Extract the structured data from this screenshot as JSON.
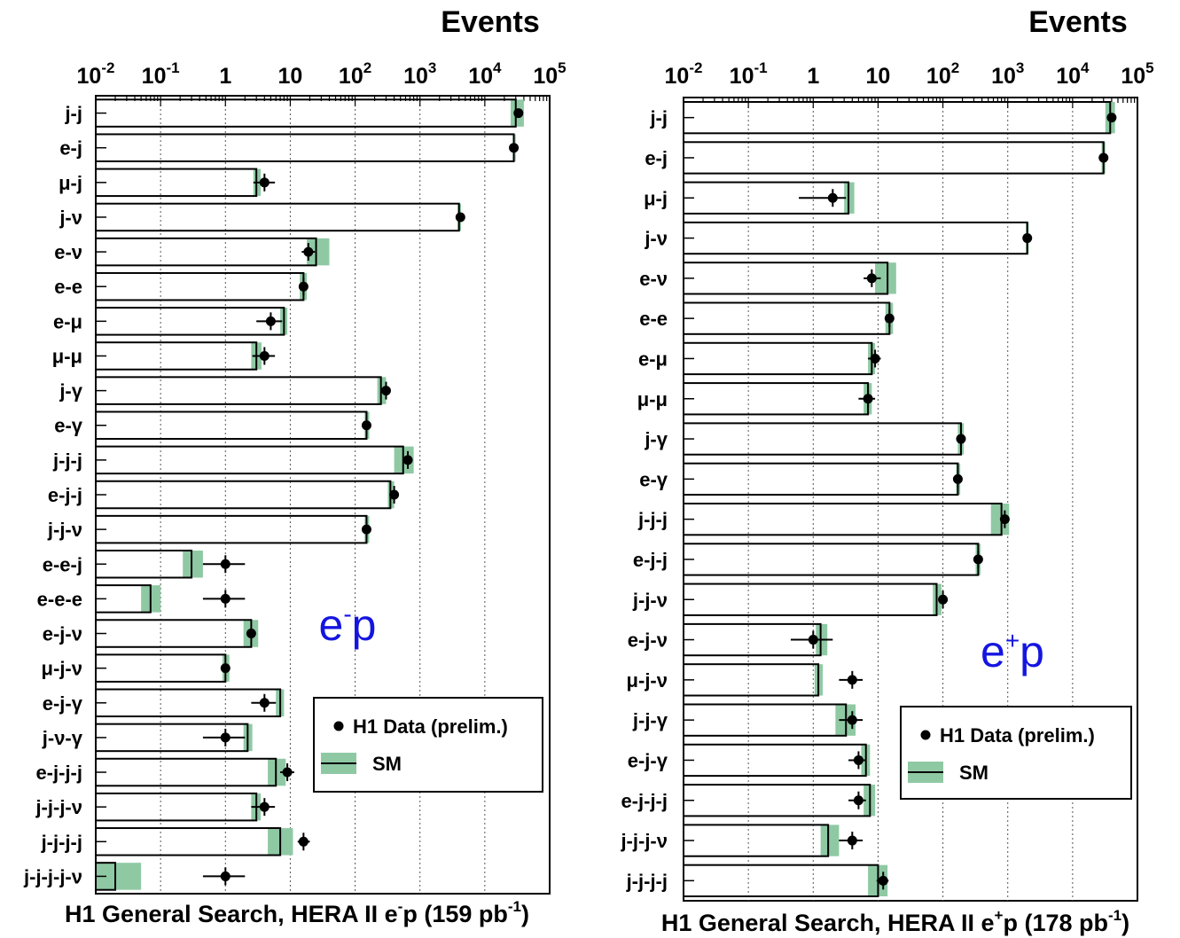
{
  "chart_data": [
    {
      "type": "bar",
      "scale": "log",
      "orientation": "horizontal",
      "axis_title": "Events",
      "xlim": [
        0.01,
        100000
      ],
      "tick_values": [
        0.01,
        0.1,
        1,
        10,
        100,
        1000,
        10000,
        100000
      ],
      "tick_labels": [
        "10",
        "10",
        "1",
        "10",
        "10",
        "10",
        "10",
        "10"
      ],
      "tick_exponents": [
        "-2",
        "-1",
        "",
        "",
        "2",
        "3",
        "4",
        "5"
      ],
      "grid": "vertical dotted",
      "footer_prefix": "H1 General Search, HERA II e",
      "footer_sup": "-",
      "footer_suffix": "p (159 pb",
      "footer_sup2": "-1",
      "footer_end": ")",
      "label_base": "e",
      "label_sup": "-",
      "label_tail": "p",
      "legend": {
        "data_label": "H1 Data (prelim.)",
        "sm_label": "SM",
        "placement": "bottom-right"
      },
      "categories": [
        "j-j",
        "e-j",
        "μ-j",
        "j-ν",
        "e-ν",
        "e-e",
        "e-μ",
        "μ-μ",
        "j-γ",
        "e-γ",
        "j-j-j",
        "e-j-j",
        "j-j-ν",
        "e-e-j",
        "e-e-e",
        "e-j-ν",
        "μ-j-ν",
        "e-j-γ",
        "j-ν-γ",
        "e-j-j-j",
        "j-j-j-ν",
        "j-j-j-j",
        "j-j-j-j-ν"
      ],
      "series": [
        {
          "name": "SM",
          "values": [
            30000,
            28000,
            3,
            4000,
            25,
            16,
            8,
            3,
            250,
            150,
            550,
            350,
            150,
            0.3,
            0.07,
            2.5,
            1,
            7,
            2.2,
            6,
            3,
            7,
            0.02
          ],
          "uncertainty_low": [
            25000,
            27000,
            2.7,
            3800,
            18,
            14,
            7,
            2.5,
            220,
            140,
            400,
            320,
            140,
            0.22,
            0.05,
            1.9,
            0.9,
            6,
            1.9,
            4.5,
            2.5,
            4.5,
            0.01
          ],
          "uncertainty_high": [
            40000,
            30000,
            3.5,
            4300,
            40,
            18,
            9,
            3.6,
            300,
            165,
            800,
            400,
            165,
            0.45,
            0.1,
            3.2,
            1.15,
            8,
            2.6,
            8.5,
            3.5,
            11,
            0.05
          ]
        },
        {
          "name": "H1 Data (prelim.)",
          "values": [
            33000,
            28000,
            4,
            4200,
            19,
            16,
            5,
            4,
            300,
            150,
            650,
            400,
            150,
            1,
            1,
            2.5,
            1,
            4,
            1,
            9,
            4,
            16,
            1
          ],
          "err_low": [
            29000,
            27000,
            2.7,
            4000,
            15,
            14,
            3,
            2.6,
            270,
            140,
            600,
            380,
            140,
            0.45,
            0.45,
            2.5,
            1,
            2.5,
            0.45,
            7,
            2.5,
            13,
            0.45
          ],
          "err_high": [
            37000,
            29000,
            5.8,
            4400,
            24,
            18,
            7.5,
            5.8,
            340,
            165,
            720,
            430,
            165,
            2,
            2,
            2.5,
            1,
            6,
            2,
            11.5,
            5.8,
            20,
            2
          ],
          "show_error": [
            false,
            false,
            true,
            false,
            true,
            true,
            true,
            true,
            true,
            true,
            true,
            true,
            true,
            true,
            true,
            false,
            false,
            true,
            true,
            true,
            true,
            true,
            true
          ]
        }
      ]
    },
    {
      "type": "bar",
      "scale": "log",
      "orientation": "horizontal",
      "axis_title": "Events",
      "xlim": [
        0.01,
        100000
      ],
      "tick_values": [
        0.01,
        0.1,
        1,
        10,
        100,
        1000,
        10000,
        100000
      ],
      "tick_labels": [
        "10",
        "10",
        "1",
        "10",
        "10",
        "10",
        "10",
        "10"
      ],
      "tick_exponents": [
        "-2",
        "-1",
        "",
        "",
        "2",
        "3",
        "4",
        "5"
      ],
      "grid": "vertical dotted",
      "footer_prefix": "H1 General Search, HERA II e",
      "footer_sup": "+",
      "footer_suffix": "p (178 pb",
      "footer_sup2": "-1",
      "footer_end": ")",
      "label_base": "e",
      "label_sup": "+",
      "label_tail": "p",
      "legend": {
        "data_label": "H1 Data (prelim.)",
        "sm_label": "SM",
        "placement": "bottom-right"
      },
      "categories": [
        "j-j",
        "e-j",
        "μ-j",
        "j-ν",
        "e-ν",
        "e-e",
        "e-μ",
        "μ-μ",
        "j-γ",
        "e-γ",
        "j-j-j",
        "e-j-j",
        "j-j-ν",
        "e-j-ν",
        "μ-j-ν",
        "j-j-γ",
        "e-j-γ",
        "e-j-j-j",
        "j-j-j-ν",
        "j-j-j-j"
      ],
      "series": [
        {
          "name": "SM",
          "values": [
            38000,
            30000,
            3.5,
            2000,
            14,
            15,
            8,
            7,
            190,
            170,
            800,
            350,
            80,
            1.3,
            1.2,
            3.2,
            6.5,
            7.5,
            1.7,
            10
          ],
          "uncertainty_low": [
            32000,
            28000,
            3,
            1900,
            9,
            13,
            7,
            6,
            170,
            160,
            550,
            320,
            70,
            1.1,
            1.05,
            2.2,
            5.5,
            6,
            1.3,
            7
          ],
          "uncertainty_high": [
            45000,
            32000,
            4.3,
            2100,
            19,
            17,
            9,
            8,
            210,
            185,
            1050,
            380,
            95,
            1.65,
            1.4,
            4.5,
            7.5,
            9,
            2.5,
            14
          ]
        },
        {
          "name": "H1 Data (prelim.)",
          "values": [
            40000,
            30000,
            2,
            2000,
            8,
            15,
            9,
            7,
            190,
            170,
            900,
            350,
            100,
            1,
            4,
            4,
            5,
            5,
            4,
            12
          ],
          "err_low": [
            35000,
            28000,
            0.6,
            1900,
            6,
            13,
            7,
            5,
            170,
            160,
            800,
            320,
            90,
            0.45,
            2.5,
            2.5,
            3.5,
            3.5,
            2.5,
            9.5
          ],
          "err_high": [
            45000,
            32000,
            3.2,
            2100,
            11,
            17,
            11,
            9,
            210,
            185,
            1000,
            380,
            110,
            2,
            5.8,
            5.8,
            6.5,
            6.5,
            5.8,
            14.5
          ],
          "show_error": [
            false,
            false,
            true,
            false,
            true,
            true,
            true,
            true,
            true,
            true,
            true,
            true,
            true,
            true,
            true,
            true,
            true,
            true,
            true,
            true
          ]
        }
      ]
    }
  ]
}
